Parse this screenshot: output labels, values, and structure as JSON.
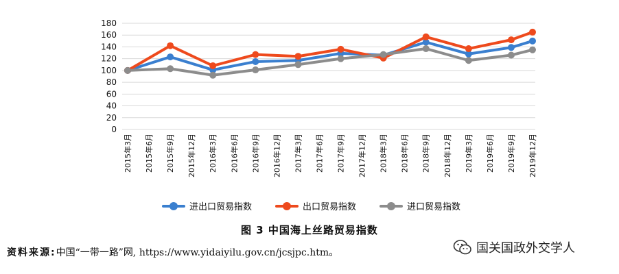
{
  "chart_data": {
    "type": "line",
    "categories": [
      "2015年3月",
      "2015年6月",
      "2015年9月",
      "2015年12月",
      "2016年3月",
      "2016年6月",
      "2016年9月",
      "2016年12月",
      "2017年3月",
      "2017年6月",
      "2017年9月",
      "2017年12月",
      "2018年3月",
      "2018年6月",
      "2018年9月",
      "2018年12月",
      "2019年3月",
      "2019年6月",
      "2019年9月",
      "2019年12月"
    ],
    "ylim": [
      0,
      180
    ],
    "yticks": [
      0,
      20,
      40,
      60,
      80,
      100,
      120,
      140,
      160,
      180
    ],
    "grid": true,
    "legend_position": "bottom",
    "series": [
      {
        "name": "进出口贸易指数",
        "color": "#3a7fcf",
        "values": [
          100,
          null,
          123,
          null,
          101,
          null,
          115,
          null,
          117,
          null,
          129,
          null,
          126,
          null,
          148,
          null,
          128,
          null,
          139,
          150
        ]
      },
      {
        "name": "出口贸易指数",
        "color": "#ee4a1d",
        "values": [
          100,
          null,
          142,
          null,
          108,
          null,
          127,
          null,
          124,
          null,
          136,
          null,
          121,
          null,
          157,
          null,
          137,
          null,
          152,
          165
        ]
      },
      {
        "name": "进口贸易指数",
        "color": "#8c8c8c",
        "values": [
          100,
          null,
          103,
          null,
          92,
          null,
          101,
          null,
          110,
          null,
          120,
          null,
          127,
          null,
          137,
          null,
          117,
          null,
          126,
          135
        ]
      }
    ]
  },
  "caption": "图 3    中国海上丝路贸易指数",
  "source": {
    "label": "资料来源:",
    "text": "中国“一带一路”网, https://www.yidaiyilu.gov.cn/jcsjpc.htm。"
  },
  "watermark": {
    "text": "国关国政外交学人",
    "icon": "wechat-icon"
  }
}
